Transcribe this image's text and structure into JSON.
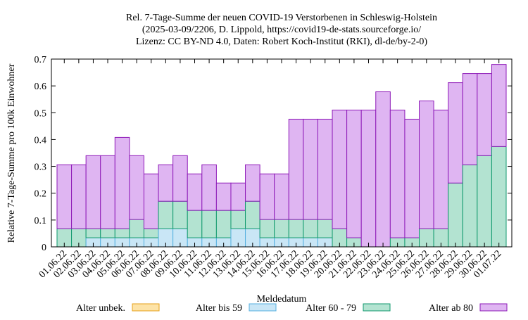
{
  "chart_data": {
    "type": "bar",
    "stacked": true,
    "title_lines": [
      "Rel. 7-Tage-Summe der neuen COVID-19 Verstorbenen in Schleswig-Holstein",
      "(2025-03-09/2206, D. Lippold, https://covid19-de-stats.sourceforge.io/",
      "Lizenz: CC BY-ND 4.0, Daten: Robert Koch-Institut (RKI), dl-de/by-2-0)"
    ],
    "xlabel": "Meldedatum",
    "ylabel": "Relative 7-Tage-Summe pro 100k Einwohner",
    "ylim": [
      0,
      0.7
    ],
    "yticks": [
      "0",
      "0.1",
      "0.2",
      "0.3",
      "0.4",
      "0.5",
      "0.6",
      "0.7"
    ],
    "grid": false,
    "legend_position": "bottom",
    "categories": [
      "01.06.22",
      "02.06.22",
      "03.06.22",
      "04.06.22",
      "05.06.22",
      "06.06.22",
      "07.06.22",
      "08.06.22",
      "09.06.22",
      "10.06.22",
      "11.06.22",
      "12.06.22",
      "13.06.22",
      "14.06.22",
      "15.06.22",
      "16.06.22",
      "17.06.22",
      "18.06.22",
      "19.06.22",
      "20.06.22",
      "21.06.22",
      "22.06.22",
      "23.06.22",
      "24.06.22",
      "25.06.22",
      "26.06.22",
      "27.06.22",
      "28.06.22",
      "29.06.22",
      "30.06.22",
      "01.07.22"
    ],
    "series": [
      {
        "name": "Alter unbek.",
        "fill": "#fde3a7",
        "stroke": "#e6a11a",
        "values": [
          0,
          0,
          0,
          0,
          0,
          0,
          0,
          0,
          0,
          0,
          0,
          0,
          0,
          0,
          0,
          0,
          0,
          0,
          0,
          0,
          0,
          0,
          0,
          0,
          0,
          0,
          0,
          0,
          0,
          0,
          0
        ]
      },
      {
        "name": "Alter bis 59",
        "fill": "#c9e6f6",
        "stroke": "#56b0e0",
        "values": [
          0,
          0,
          0.034,
          0.034,
          0.034,
          0.034,
          0.034,
          0.068,
          0.068,
          0.034,
          0.034,
          0.034,
          0.068,
          0.068,
          0.034,
          0.034,
          0.034,
          0.034,
          0.034,
          0,
          0,
          0,
          0,
          0,
          0,
          0,
          0,
          0,
          0,
          0,
          0
        ]
      },
      {
        "name": "Alter 60 - 79",
        "fill": "#b3e3d1",
        "stroke": "#129a6e",
        "values": [
          0.068,
          0.068,
          0.034,
          0.034,
          0.034,
          0.068,
          0.034,
          0.102,
          0.102,
          0.102,
          0.102,
          0.102,
          0.068,
          0.102,
          0.068,
          0.068,
          0.068,
          0.068,
          0.068,
          0.068,
          0.034,
          0,
          0,
          0.034,
          0.034,
          0.068,
          0.068,
          0.238,
          0.306,
          0.34,
          0.374
        ]
      },
      {
        "name": "Alter ab 80",
        "fill": "#dfb5f2",
        "stroke": "#8e1ab8",
        "values": [
          0.238,
          0.238,
          0.272,
          0.272,
          0.34,
          0.238,
          0.204,
          0.136,
          0.17,
          0.136,
          0.17,
          0.102,
          0.102,
          0.136,
          0.17,
          0.17,
          0.374,
          0.374,
          0.374,
          0.442,
          0.476,
          0.51,
          0.578,
          0.476,
          0.442,
          0.476,
          0.442,
          0.374,
          0.34,
          0.306,
          0.306
        ]
      }
    ]
  }
}
